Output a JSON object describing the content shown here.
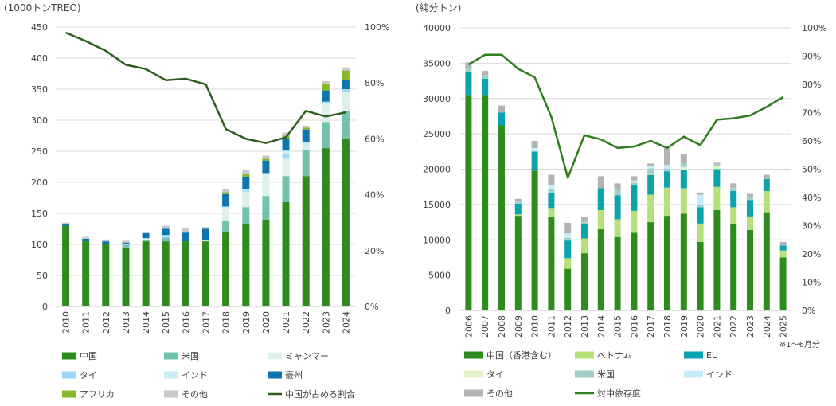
{
  "chart_data": [
    {
      "type": "bar",
      "stacked": true,
      "ylabel": "(1000トンTREO)",
      "ylim": [
        0,
        450
      ],
      "y_ticks": [
        0,
        50,
        100,
        150,
        200,
        250,
        300,
        350,
        400,
        450
      ],
      "y2lim": [
        0,
        100
      ],
      "y2_ticks": [
        "0%",
        "20%",
        "40%",
        "60%",
        "80%",
        "100%"
      ],
      "grid": true,
      "legend_position": "bottom",
      "categories": [
        "2010",
        "2011",
        "2012",
        "2013",
        "2014",
        "2015",
        "2016",
        "2017",
        "2018",
        "2019",
        "2020",
        "2021",
        "2022",
        "2023",
        "2024"
      ],
      "series": [
        {
          "name": "中国",
          "color": "#2E8B1E",
          "values": [
            130,
            105,
            100,
            95,
            105,
            105,
            105,
            105,
            120,
            132,
            140,
            168,
            210,
            255,
            270
          ]
        },
        {
          "name": "米国",
          "color": "#72C2AE",
          "values": [
            0,
            0,
            0,
            4,
            3,
            6,
            0,
            0,
            18,
            28,
            38,
            42,
            42,
            42,
            45
          ]
        },
        {
          "name": "ミャンマー",
          "color": "#DDF0EA",
          "values": [
            0,
            0,
            0,
            0,
            2,
            0,
            0,
            0,
            22,
            25,
            35,
            28,
            5,
            30,
            30
          ]
        },
        {
          "name": "タイ",
          "color": "#9FD6F7",
          "values": [
            0,
            0,
            0,
            1,
            0,
            1,
            0,
            0,
            1,
            2,
            2,
            8,
            0,
            3,
            5
          ]
        },
        {
          "name": "インド",
          "color": "#C7EEF7",
          "values": [
            0,
            0,
            0,
            0,
            0,
            3,
            0,
            2,
            0,
            2,
            0,
            5,
            8,
            0,
            0
          ]
        },
        {
          "name": "豪州",
          "color": "#0E75B0",
          "values": [
            2,
            4,
            5,
            3,
            8,
            10,
            14,
            18,
            20,
            20,
            20,
            20,
            20,
            18,
            15
          ]
        },
        {
          "name": "アフリカ",
          "color": "#86B92C",
          "values": [
            0,
            0,
            0,
            0,
            0,
            0,
            0,
            0,
            3,
            5,
            3,
            4,
            3,
            10,
            15
          ]
        },
        {
          "name": "その他",
          "color": "#C8C8C8",
          "values": [
            3,
            3,
            3,
            3,
            2,
            5,
            8,
            3,
            5,
            6,
            5,
            5,
            3,
            5,
            5
          ]
        }
      ],
      "line": {
        "name": "中国が占める割合",
        "color": "#2E5E1B",
        "values": [
          98,
          95,
          91.5,
          86.5,
          85,
          81,
          81.5,
          79.5,
          63.5,
          60,
          58.5,
          60.5,
          70,
          68,
          69.5
        ]
      }
    },
    {
      "type": "bar",
      "stacked": true,
      "ylabel": "(純分トン)",
      "ylim": [
        0,
        40000
      ],
      "y_ticks": [
        0,
        5000,
        10000,
        15000,
        20000,
        25000,
        30000,
        35000,
        40000
      ],
      "y2lim": [
        0,
        100
      ],
      "y2_ticks": [
        "0%",
        "10%",
        "20%",
        "30%",
        "40%",
        "50%",
        "60%",
        "70%",
        "80%",
        "90%",
        "100%"
      ],
      "grid": true,
      "legend_position": "bottom",
      "note": "※1～6月分",
      "categories": [
        "2006",
        "2007",
        "2008",
        "2009",
        "2010",
        "2011",
        "2012",
        "2013",
        "2014",
        "2015",
        "2016",
        "2017",
        "2018",
        "2019",
        "2020",
        "2021",
        "2022",
        "2023",
        "2024",
        "2025"
      ],
      "series": [
        {
          "name": "中国（香港含む）",
          "color": "#2E8B1E",
          "values": [
            30500,
            30500,
            26200,
            13400,
            19800,
            13300,
            5900,
            8100,
            11500,
            10400,
            11000,
            12500,
            13400,
            13700,
            9700,
            14200,
            12200,
            11400,
            13900,
            7500
          ]
        },
        {
          "name": "ベトナム",
          "color": "#B7E07A",
          "values": [
            0,
            0,
            0,
            200,
            0,
            1200,
            1500,
            2100,
            2700,
            2500,
            3100,
            3900,
            4000,
            3600,
            2600,
            3300,
            2400,
            1900,
            3000,
            1000
          ]
        },
        {
          "name": "EU",
          "color": "#0AA3AE",
          "values": [
            3300,
            2300,
            1800,
            1500,
            2700,
            2200,
            2500,
            2000,
            3100,
            3400,
            3600,
            2800,
            2300,
            2600,
            2300,
            2500,
            2300,
            2300,
            1700,
            700
          ]
        },
        {
          "name": "タイ",
          "color": "#E2F3C9",
          "values": [
            0,
            0,
            0,
            0,
            0,
            0,
            0,
            0,
            0,
            0,
            0,
            200,
            0,
            400,
            0,
            400,
            0,
            0,
            0,
            0
          ]
        },
        {
          "name": "米国",
          "color": "#9ECFC8",
          "values": [
            500,
            500,
            0,
            300,
            0,
            500,
            400,
            500,
            0,
            800,
            400,
            700,
            400,
            500,
            300,
            300,
            500,
            400,
            0,
            0
          ]
        },
        {
          "name": "インド",
          "color": "#C6EEF8",
          "values": [
            0,
            0,
            0,
            0,
            500,
            500,
            600,
            0,
            0,
            0,
            300,
            300,
            500,
            0,
            1500,
            0,
            0,
            0,
            0,
            0
          ]
        },
        {
          "name": "その他",
          "color": "#B3B3B3",
          "values": [
            800,
            600,
            1000,
            400,
            1000,
            1500,
            1500,
            500,
            1700,
            900,
            600,
            400,
            2400,
            1300,
            300,
            200,
            600,
            500,
            600,
            500
          ]
        }
      ],
      "line": {
        "name": "対中依存度",
        "color": "#2E7D1F",
        "values": [
          87,
          90.5,
          90.5,
          85.5,
          82.5,
          68.5,
          47,
          62,
          60.5,
          57.5,
          58,
          60,
          57.5,
          61.5,
          58.5,
          67.5,
          68,
          69,
          72,
          75.5
        ]
      }
    }
  ]
}
